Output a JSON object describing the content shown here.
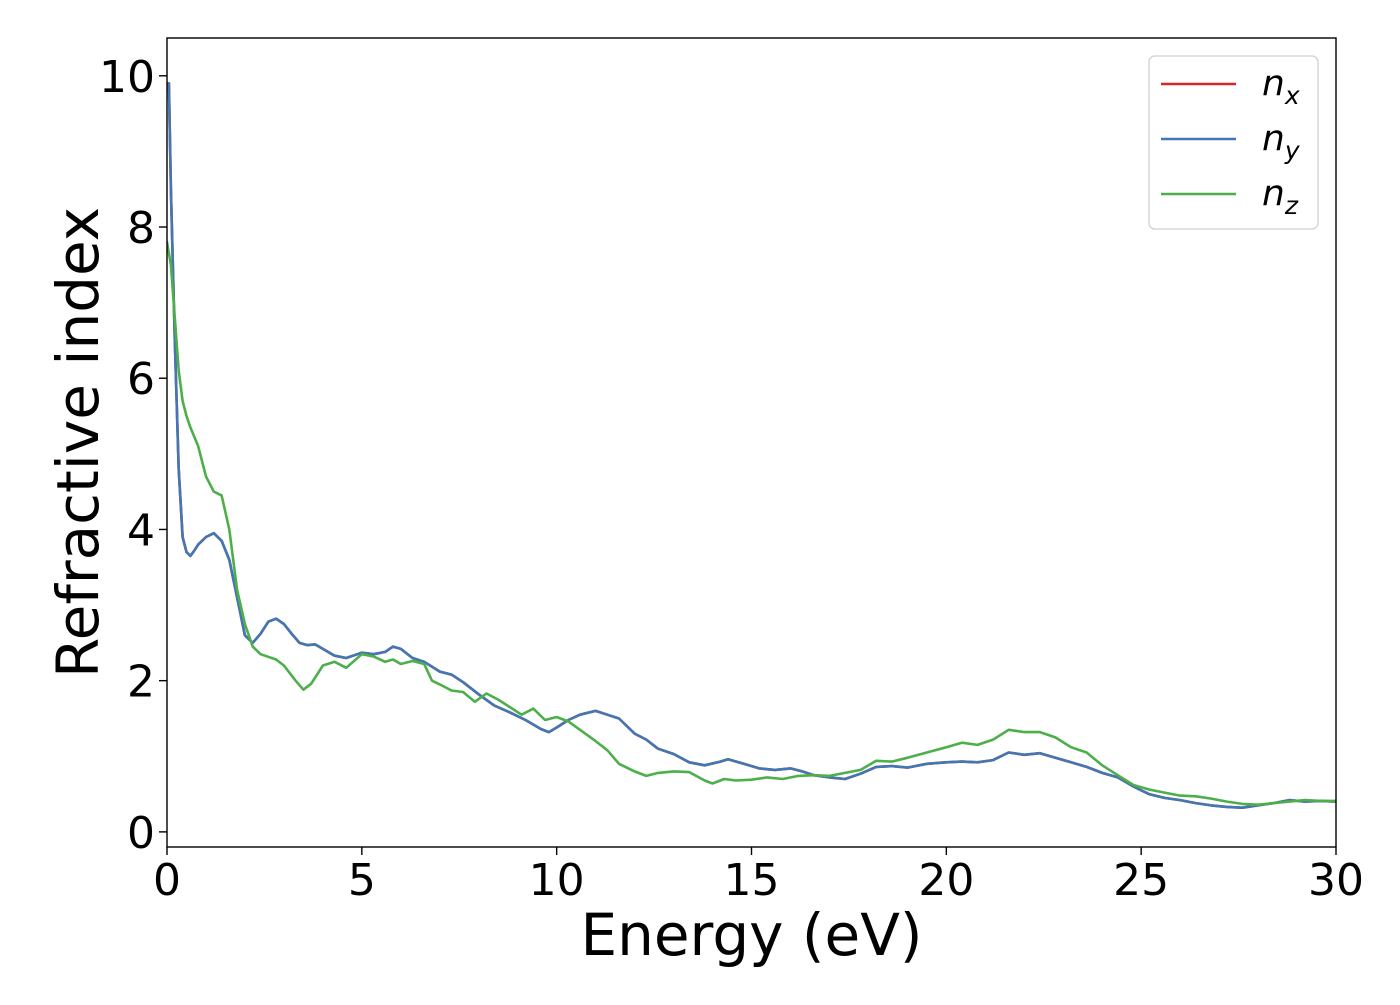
{
  "chart_data": {
    "type": "line",
    "title": "",
    "xlabel": "Energy (eV)",
    "ylabel": "Refractive index",
    "xlim": [
      0,
      30
    ],
    "ylim": [
      -0.2,
      10.5
    ],
    "xticks": [
      0,
      5,
      10,
      15,
      20,
      25,
      30
    ],
    "xtick_labels": [
      "0",
      "5",
      "10",
      "15",
      "20",
      "25",
      "30"
    ],
    "yticks": [
      0,
      2,
      4,
      6,
      8,
      10
    ],
    "ytick_labels": [
      "0",
      "2",
      "4",
      "6",
      "8",
      "10"
    ],
    "grid": false,
    "legend_position": "top-right",
    "series": [
      {
        "name": "n_x",
        "label_main": "n",
        "label_sub": "x",
        "color": "#d62728",
        "x": [
          0.0,
          0.05,
          0.1,
          0.2,
          0.3,
          0.4,
          0.5,
          0.6,
          0.7,
          0.8,
          1.0,
          1.2,
          1.4,
          1.6,
          1.8,
          2.0,
          2.2,
          2.4,
          2.6,
          2.8,
          3.0,
          3.2,
          3.4,
          3.6,
          3.8,
          4.0,
          4.3,
          4.6,
          5.0,
          5.3,
          5.6,
          5.8,
          6.0,
          6.3,
          6.6,
          7.0,
          7.3,
          7.6,
          8.0,
          8.4,
          8.8,
          9.2,
          9.6,
          9.8,
          10.0,
          10.3,
          10.6,
          11.0,
          11.3,
          11.6,
          12.0,
          12.3,
          12.6,
          13.0,
          13.4,
          13.8,
          14.2,
          14.4,
          14.8,
          15.2,
          15.6,
          16.0,
          16.3,
          16.6,
          17.0,
          17.4,
          17.8,
          18.2,
          18.6,
          19.0,
          19.5,
          20.0,
          20.4,
          20.8,
          21.2,
          21.6,
          22.0,
          22.4,
          22.8,
          23.2,
          23.6,
          24.0,
          24.4,
          24.8,
          25.2,
          25.6,
          26.0,
          26.4,
          26.8,
          27.2,
          27.6,
          28.0,
          28.4,
          28.8,
          29.2,
          29.6,
          30.0
        ],
        "y": [
          9.9,
          9.9,
          8.5,
          6.5,
          4.8,
          3.9,
          3.7,
          3.65,
          3.72,
          3.8,
          3.9,
          3.95,
          3.85,
          3.6,
          3.1,
          2.6,
          2.5,
          2.62,
          2.78,
          2.82,
          2.75,
          2.62,
          2.5,
          2.47,
          2.48,
          2.42,
          2.33,
          2.3,
          2.37,
          2.35,
          2.38,
          2.45,
          2.42,
          2.3,
          2.25,
          2.12,
          2.08,
          1.98,
          1.82,
          1.67,
          1.58,
          1.48,
          1.36,
          1.32,
          1.38,
          1.48,
          1.55,
          1.6,
          1.55,
          1.5,
          1.3,
          1.22,
          1.1,
          1.03,
          0.92,
          0.88,
          0.93,
          0.96,
          0.9,
          0.84,
          0.82,
          0.84,
          0.8,
          0.75,
          0.72,
          0.7,
          0.77,
          0.86,
          0.87,
          0.85,
          0.9,
          0.92,
          0.93,
          0.92,
          0.95,
          1.05,
          1.02,
          1.04,
          0.98,
          0.92,
          0.86,
          0.78,
          0.72,
          0.6,
          0.5,
          0.45,
          0.42,
          0.38,
          0.35,
          0.33,
          0.32,
          0.35,
          0.38,
          0.42,
          0.4,
          0.41,
          0.4
        ]
      },
      {
        "name": "n_y",
        "label_main": "n",
        "label_sub": "y",
        "color": "#4177b3",
        "x": [
          0.0,
          0.05,
          0.1,
          0.2,
          0.3,
          0.4,
          0.5,
          0.6,
          0.7,
          0.8,
          1.0,
          1.2,
          1.4,
          1.6,
          1.8,
          2.0,
          2.2,
          2.4,
          2.6,
          2.8,
          3.0,
          3.2,
          3.4,
          3.6,
          3.8,
          4.0,
          4.3,
          4.6,
          5.0,
          5.3,
          5.6,
          5.8,
          6.0,
          6.3,
          6.6,
          7.0,
          7.3,
          7.6,
          8.0,
          8.4,
          8.8,
          9.2,
          9.6,
          9.8,
          10.0,
          10.3,
          10.6,
          11.0,
          11.3,
          11.6,
          12.0,
          12.3,
          12.6,
          13.0,
          13.4,
          13.8,
          14.2,
          14.4,
          14.8,
          15.2,
          15.6,
          16.0,
          16.3,
          16.6,
          17.0,
          17.4,
          17.8,
          18.2,
          18.6,
          19.0,
          19.5,
          20.0,
          20.4,
          20.8,
          21.2,
          21.6,
          22.0,
          22.4,
          22.8,
          23.2,
          23.6,
          24.0,
          24.4,
          24.8,
          25.2,
          25.6,
          26.0,
          26.4,
          26.8,
          27.2,
          27.6,
          28.0,
          28.4,
          28.8,
          29.2,
          29.6,
          30.0
        ],
        "y": [
          9.9,
          9.9,
          8.5,
          6.5,
          4.8,
          3.9,
          3.7,
          3.65,
          3.72,
          3.8,
          3.9,
          3.95,
          3.85,
          3.6,
          3.1,
          2.6,
          2.5,
          2.62,
          2.78,
          2.82,
          2.75,
          2.62,
          2.5,
          2.47,
          2.48,
          2.42,
          2.33,
          2.3,
          2.37,
          2.35,
          2.38,
          2.45,
          2.42,
          2.3,
          2.25,
          2.12,
          2.08,
          1.98,
          1.82,
          1.67,
          1.58,
          1.48,
          1.36,
          1.32,
          1.38,
          1.48,
          1.55,
          1.6,
          1.55,
          1.5,
          1.3,
          1.22,
          1.1,
          1.03,
          0.92,
          0.88,
          0.93,
          0.96,
          0.9,
          0.84,
          0.82,
          0.84,
          0.8,
          0.75,
          0.72,
          0.7,
          0.77,
          0.86,
          0.87,
          0.85,
          0.9,
          0.92,
          0.93,
          0.92,
          0.95,
          1.05,
          1.02,
          1.04,
          0.98,
          0.92,
          0.86,
          0.78,
          0.72,
          0.6,
          0.5,
          0.45,
          0.42,
          0.38,
          0.35,
          0.33,
          0.32,
          0.35,
          0.38,
          0.42,
          0.4,
          0.41,
          0.4
        ]
      },
      {
        "name": "n_z",
        "label_main": "n",
        "label_sub": "z",
        "color": "#4daf4a",
        "x": [
          0.0,
          0.1,
          0.2,
          0.3,
          0.4,
          0.5,
          0.6,
          0.8,
          1.0,
          1.2,
          1.4,
          1.6,
          1.8,
          2.0,
          2.2,
          2.4,
          2.8,
          3.0,
          3.3,
          3.5,
          3.7,
          4.0,
          4.3,
          4.6,
          5.0,
          5.3,
          5.6,
          5.8,
          6.0,
          6.3,
          6.6,
          6.8,
          7.0,
          7.3,
          7.6,
          7.9,
          8.2,
          8.5,
          8.8,
          9.1,
          9.4,
          9.7,
          10.0,
          10.3,
          10.6,
          11.0,
          11.3,
          11.6,
          12.0,
          12.3,
          12.6,
          13.0,
          13.4,
          13.8,
          14.0,
          14.3,
          14.6,
          15.0,
          15.4,
          15.8,
          16.2,
          16.6,
          17.0,
          17.4,
          17.8,
          18.2,
          18.6,
          19.0,
          19.5,
          20.0,
          20.4,
          20.8,
          21.2,
          21.6,
          22.0,
          22.4,
          22.8,
          23.2,
          23.6,
          24.0,
          24.4,
          24.8,
          25.2,
          25.6,
          26.0,
          26.4,
          26.8,
          27.2,
          27.6,
          28.0,
          28.4,
          28.8,
          29.2,
          29.6,
          30.0
        ],
        "y": [
          7.8,
          7.5,
          6.8,
          6.1,
          5.7,
          5.5,
          5.35,
          5.1,
          4.7,
          4.5,
          4.45,
          4.0,
          3.2,
          2.75,
          2.45,
          2.35,
          2.28,
          2.2,
          2.0,
          1.88,
          1.96,
          2.2,
          2.25,
          2.17,
          2.35,
          2.32,
          2.25,
          2.28,
          2.22,
          2.26,
          2.22,
          2.0,
          1.95,
          1.87,
          1.85,
          1.72,
          1.83,
          1.75,
          1.65,
          1.55,
          1.63,
          1.48,
          1.52,
          1.46,
          1.35,
          1.2,
          1.08,
          0.9,
          0.8,
          0.74,
          0.78,
          0.8,
          0.79,
          0.68,
          0.64,
          0.7,
          0.68,
          0.69,
          0.72,
          0.7,
          0.74,
          0.75,
          0.74,
          0.78,
          0.82,
          0.94,
          0.93,
          0.98,
          1.05,
          1.12,
          1.18,
          1.15,
          1.22,
          1.35,
          1.32,
          1.32,
          1.25,
          1.12,
          1.05,
          0.88,
          0.75,
          0.62,
          0.56,
          0.52,
          0.48,
          0.47,
          0.44,
          0.4,
          0.37,
          0.36,
          0.38,
          0.4,
          0.42,
          0.41,
          0.41
        ]
      }
    ]
  }
}
